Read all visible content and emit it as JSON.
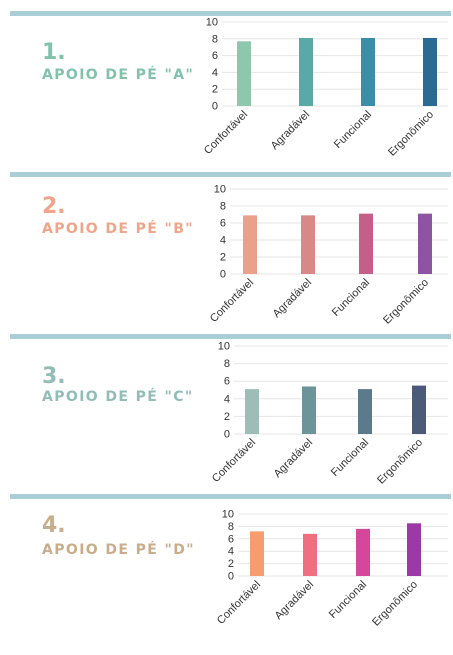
{
  "sections": [
    {
      "number": "1.",
      "title": "APOIO DE PÉ \"A\"",
      "color": "#82c2ab"
    },
    {
      "number": "2.",
      "title": "APOIO DE PÉ \"B\"",
      "color": "#eea58a"
    },
    {
      "number": "3.",
      "title": "APOIO DE PÉ \"C\"",
      "color": "#92bcb6"
    },
    {
      "number": "4.",
      "title": "APOIO DE PÉ \"D\"",
      "color": "#c9ad8a"
    }
  ],
  "chart_data": [
    {
      "type": "bar",
      "categories": [
        "Confortável",
        "Agradável",
        "Funcional",
        "Ergonômico"
      ],
      "values": [
        7.7,
        8.1,
        8.1,
        8.1
      ],
      "ylim": [
        0,
        10
      ],
      "yticks": [
        0,
        2,
        4,
        6,
        8,
        10
      ],
      "grid": true,
      "colors": [
        "#8fc7ae",
        "#5aa9a8",
        "#3b8ea8",
        "#2c6a91"
      ]
    },
    {
      "type": "bar",
      "categories": [
        "Confortável",
        "Agradável",
        "Funcional",
        "Ergonômico"
      ],
      "values": [
        6.9,
        6.9,
        7.1,
        7.1
      ],
      "ylim": [
        0,
        10
      ],
      "yticks": [
        0,
        2,
        4,
        6,
        8,
        10
      ],
      "grid": true,
      "colors": [
        "#eba08c",
        "#d98888",
        "#c2608a",
        "#8e54a3"
      ]
    },
    {
      "type": "bar",
      "categories": [
        "Confortável",
        "Agradável",
        "Funcional",
        "Ergonômico"
      ],
      "values": [
        5.1,
        5.4,
        5.1,
        5.5
      ],
      "ylim": [
        0,
        10
      ],
      "yticks": [
        0,
        2,
        4,
        6,
        8,
        10
      ],
      "grid": true,
      "colors": [
        "#9dbdb6",
        "#6b9598",
        "#5b7b8d",
        "#4c5a7a"
      ]
    },
    {
      "type": "bar",
      "categories": [
        "Confortável",
        "Agradável",
        "Funcional",
        "Ergonômico"
      ],
      "values": [
        7.2,
        6.8,
        7.6,
        8.5
      ],
      "ylim": [
        0,
        10
      ],
      "yticks": [
        0,
        2,
        4,
        6,
        8,
        10
      ],
      "grid": true,
      "colors": [
        "#f79c6f",
        "#ee6f7f",
        "#d4479a",
        "#9b3aa6"
      ]
    }
  ]
}
